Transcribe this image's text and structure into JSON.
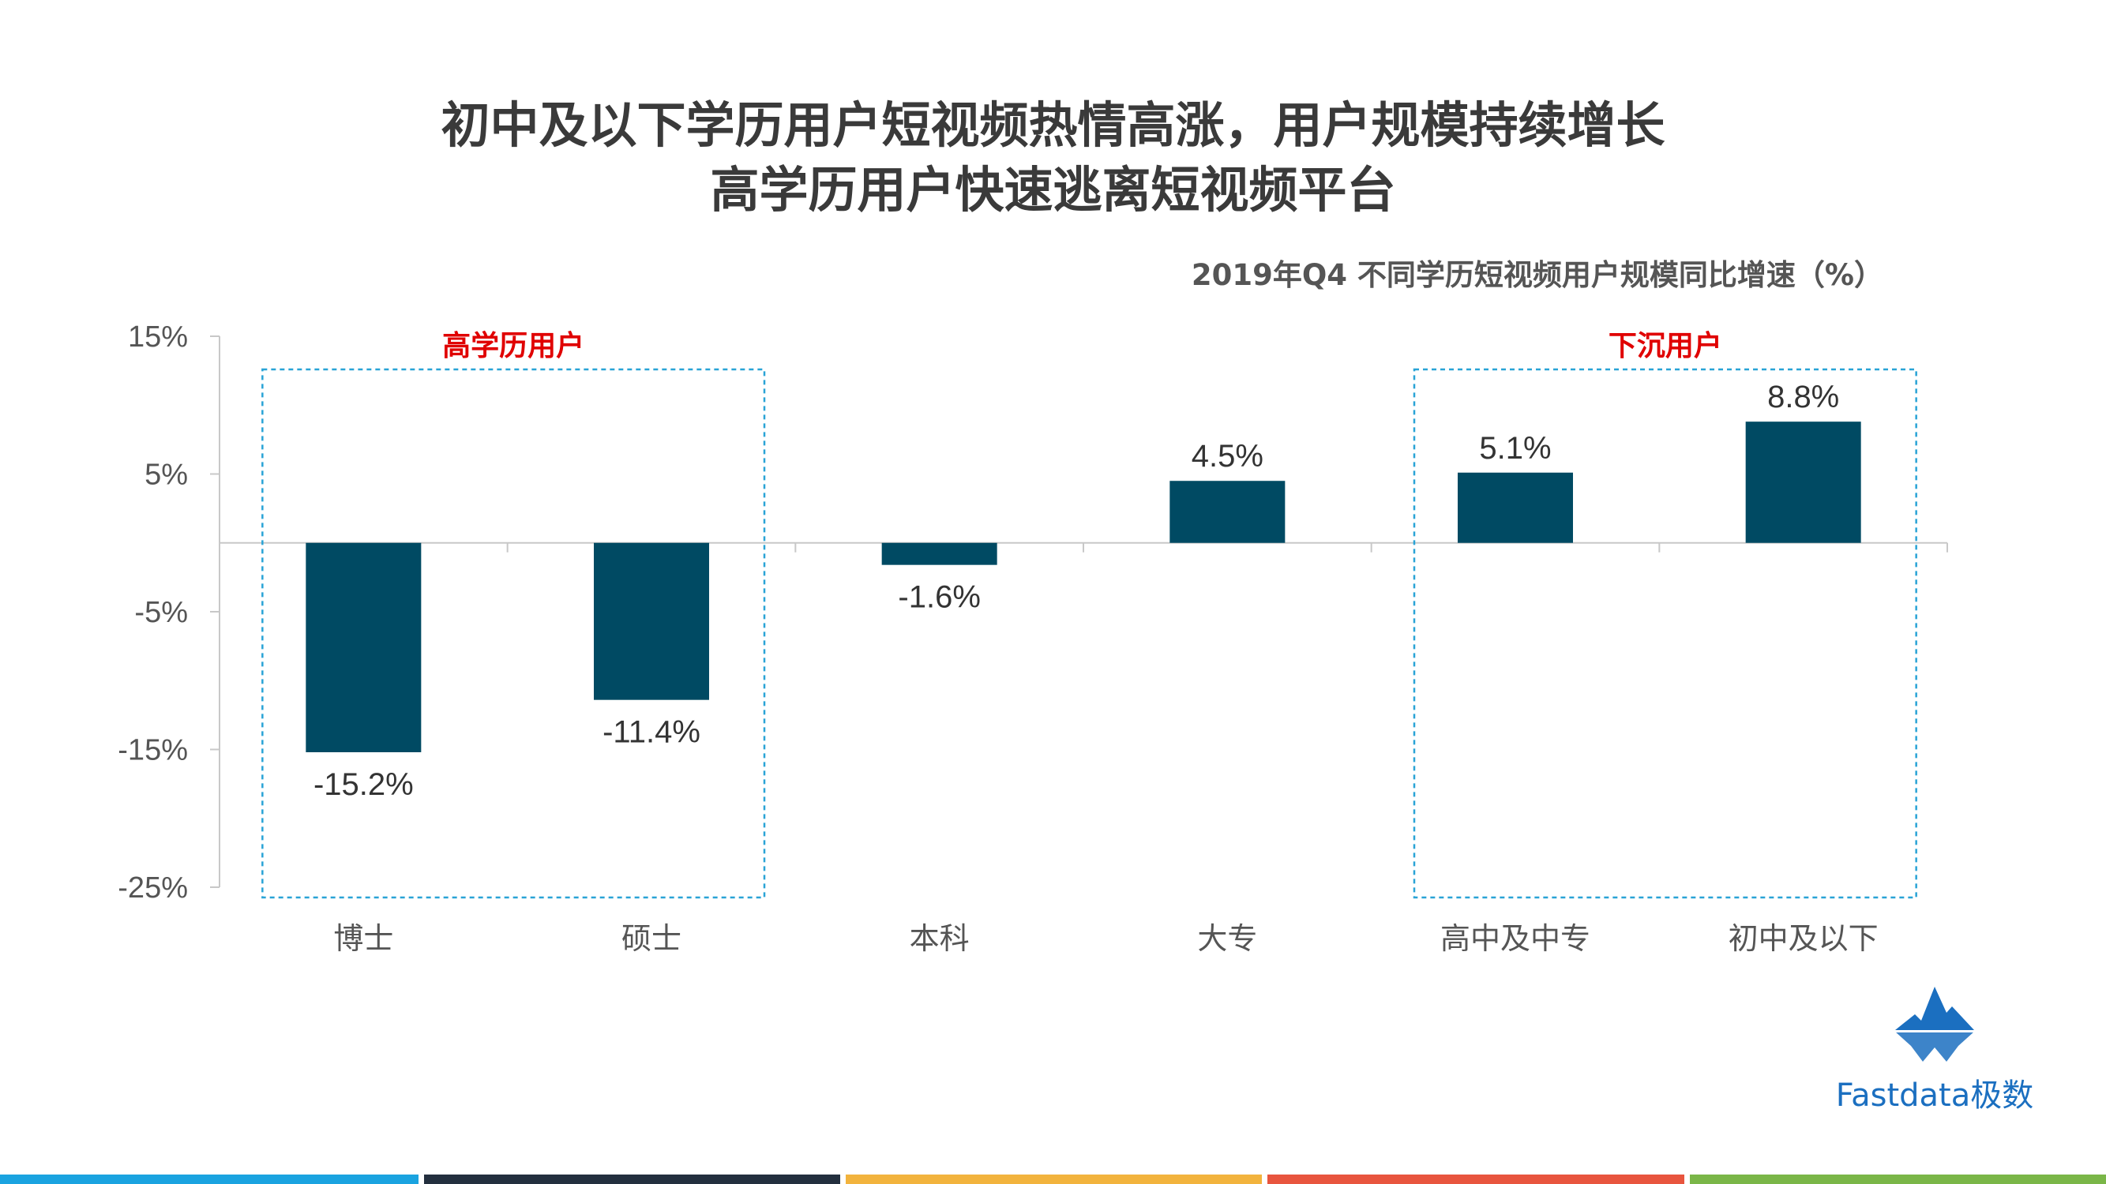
{
  "title_line1": "初中及以下学历用户短视频热情高涨，用户规模持续增长",
  "title_line2": "高学历用户快速逃离短视频平台",
  "chart_data": {
    "type": "bar",
    "title": "2019年Q4 不同学历短视频用户规模同比增速（%）",
    "categories": [
      "博士",
      "硕士",
      "本科",
      "大专",
      "高中及中专",
      "初中及以下"
    ],
    "values": [
      -15.2,
      -11.4,
      -1.6,
      4.5,
      5.1,
      8.8
    ],
    "data_labels": [
      "-15.2%",
      "-11.4%",
      "-1.6%",
      "4.5%",
      "5.1%",
      "8.8%"
    ],
    "ylim": [
      -25,
      15
    ],
    "yticks": [
      15,
      5,
      -5,
      -15,
      -25
    ],
    "ytick_labels": [
      "15%",
      "5%",
      "-5%",
      "-15%",
      "-25%"
    ],
    "xlabel": "",
    "ylabel": "",
    "grid": false,
    "bar_color": "#004a63",
    "groups": [
      {
        "label": "高学历用户",
        "categories": [
          "博士",
          "硕士"
        ],
        "color": "#e00000",
        "box_color": "#29a3d6"
      },
      {
        "label": "下沉用户",
        "categories": [
          "高中及中专",
          "初中及以下"
        ],
        "color": "#e00000",
        "box_color": "#29a3d6"
      }
    ]
  },
  "logo": {
    "text": "Fastdata极数",
    "color": "#1b6fc0"
  },
  "footer_colors": [
    "#1aa3e0",
    "#232f3e",
    "#f2b33d",
    "#e8553e",
    "#7ab648"
  ]
}
